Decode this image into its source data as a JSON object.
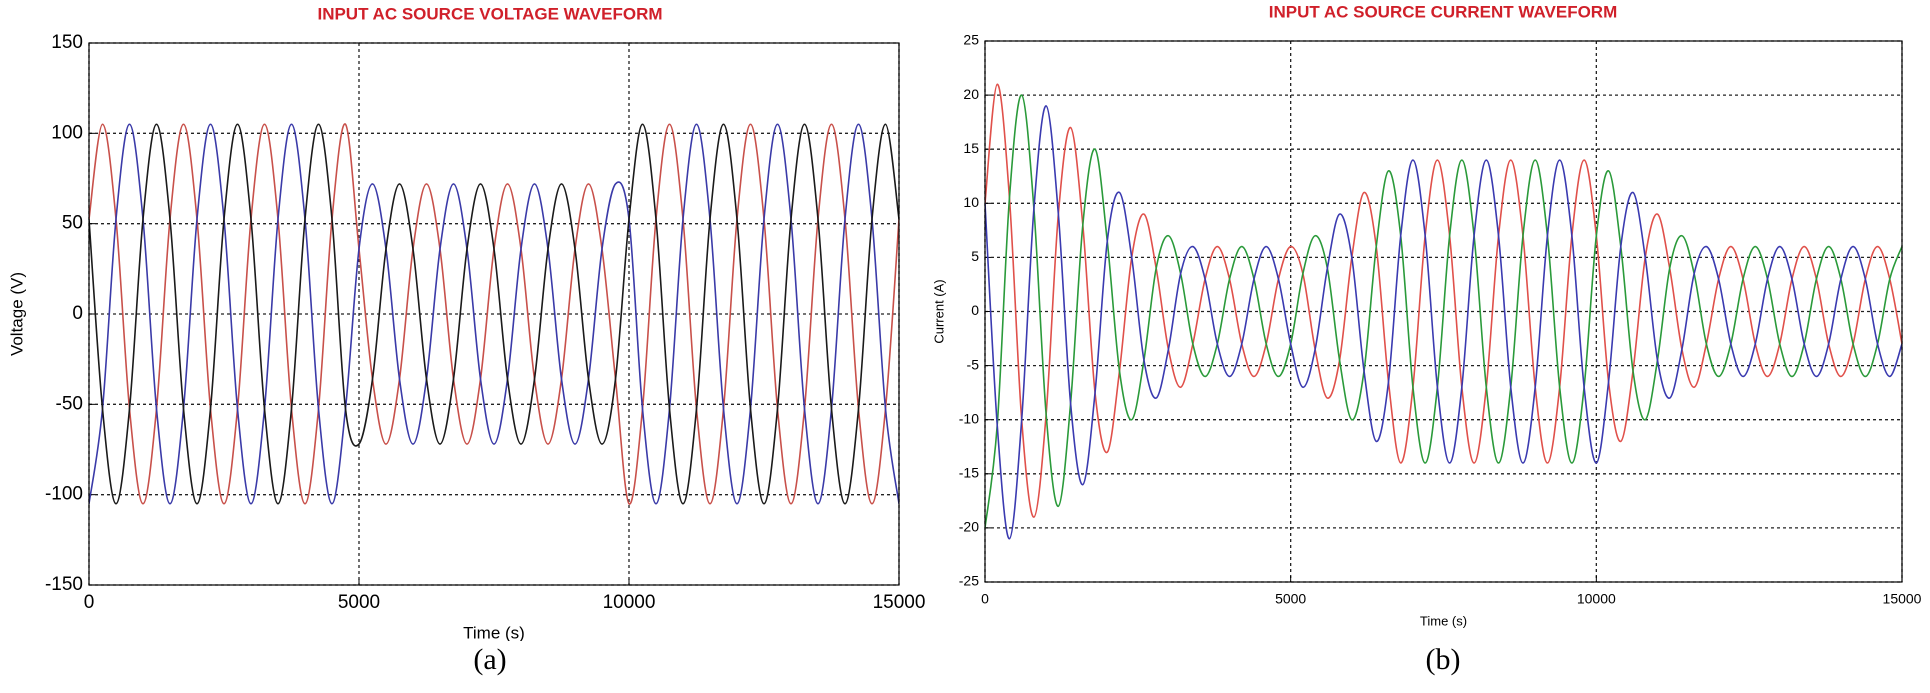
{
  "chart_data": [
    {
      "type": "line",
      "title": "INPUT AC SOURCE VOLTAGE WAVEFORM",
      "xlabel": "Time (s)",
      "ylabel": "Voltage (V)",
      "caption": "(a)",
      "x": [
        0,
        250,
        500,
        750,
        1000,
        1250,
        1500,
        1750,
        2000,
        2250,
        2500,
        2750,
        3000,
        3250,
        3500,
        3750,
        4000,
        4250,
        4500,
        4750,
        5000,
        5250,
        5500,
        5750,
        6000,
        6250,
        6500,
        6750,
        7000,
        7250,
        7500,
        7750,
        8000,
        8250,
        8500,
        8750,
        9000,
        9250,
        9500,
        9750,
        10000,
        10250,
        10500,
        10750,
        11000,
        11250,
        11500,
        11750,
        12000,
        12250,
        12500,
        12750,
        13000,
        13250,
        13500,
        13750,
        14000,
        14250,
        14500,
        14750,
        15000
      ],
      "series": [
        {
          "color": "#c8504a",
          "values": [
            52.5,
            105,
            52.5,
            -52.5,
            -105,
            -52.5,
            52.5,
            105,
            52.5,
            -52.5,
            -105,
            -52.5,
            52.5,
            105,
            52.5,
            -52.5,
            -105,
            -52.5,
            52.5,
            105,
            36,
            -36,
            -72,
            -36,
            36,
            72,
            36,
            -36,
            -72,
            -36,
            36,
            72,
            36,
            -36,
            -72,
            -36,
            36,
            72,
            36,
            -36,
            -105,
            -52.5,
            52.5,
            105,
            52.5,
            -52.5,
            -105,
            -52.5,
            52.5,
            105,
            52.5,
            -52.5,
            -105,
            -52.5,
            52.5,
            105,
            52.5,
            -52.5,
            -105,
            -52.5,
            52.5
          ]
        },
        {
          "color": "#3a3aa8",
          "values": [
            -105,
            -52.5,
            52.5,
            105,
            52.5,
            -52.5,
            -105,
            -52.5,
            52.5,
            105,
            52.5,
            -52.5,
            -105,
            -52.5,
            52.5,
            105,
            52.5,
            -52.5,
            -105,
            -52.5,
            36,
            72,
            36,
            -36,
            -72,
            -36,
            36,
            72,
            36,
            -36,
            -72,
            -36,
            36,
            72,
            36,
            -36,
            -72,
            -36,
            36,
            72,
            52.5,
            -52.5,
            -105,
            -52.5,
            52.5,
            105,
            52.5,
            -52.5,
            -105,
            -52.5,
            52.5,
            105,
            52.5,
            -52.5,
            -105,
            -52.5,
            52.5,
            105,
            52.5,
            -52.5,
            -105
          ]
        },
        {
          "color": "#1a1a1a",
          "values": [
            52.5,
            -52.5,
            -105,
            -52.5,
            52.5,
            105,
            52.5,
            -52.5,
            -105,
            -52.5,
            52.5,
            105,
            52.5,
            -52.5,
            -105,
            -52.5,
            52.5,
            105,
            52.5,
            -52.5,
            -72,
            -36,
            36,
            72,
            36,
            -36,
            -72,
            -36,
            36,
            72,
            36,
            -36,
            -72,
            -36,
            36,
            72,
            36,
            -36,
            -72,
            -36,
            52.5,
            105,
            52.5,
            -52.5,
            -105,
            -52.5,
            52.5,
            105,
            52.5,
            -52.5,
            -105,
            -52.5,
            52.5,
            105,
            52.5,
            -52.5,
            -105,
            -52.5,
            52.5,
            105,
            52.5
          ]
        }
      ],
      "xlim": [
        0,
        15000
      ],
      "ylim": [
        -150,
        150
      ],
      "xticks": [
        0,
        5000,
        10000,
        15000
      ],
      "yticks": [
        -150,
        -100,
        -50,
        0,
        50,
        100,
        150
      ],
      "grid": true
    },
    {
      "type": "line",
      "title": "INPUT AC SOURCE CURRENT WAVEFORM",
      "xlabel": "Time (s)",
      "ylabel": "Current (A)",
      "caption": "(b)",
      "x": [
        0,
        200,
        400,
        600,
        800,
        1000,
        1200,
        1400,
        1600,
        1800,
        2000,
        2200,
        2400,
        2600,
        2800,
        3000,
        3200,
        3400,
        3600,
        3800,
        4000,
        4200,
        4400,
        4600,
        4800,
        5000,
        5200,
        5400,
        5600,
        5800,
        6000,
        6200,
        6400,
        6600,
        6800,
        7000,
        7200,
        7400,
        7600,
        7800,
        8000,
        8200,
        8400,
        8600,
        8800,
        9000,
        9200,
        9400,
        9600,
        9800,
        10000,
        10200,
        10400,
        10600,
        10800,
        11000,
        11200,
        11400,
        11600,
        11800,
        12000,
        12200,
        12400,
        12600,
        12800,
        13000,
        13200,
        13400,
        13600,
        13800,
        14000,
        14200,
        14400,
        14600,
        14800,
        15000
      ],
      "series": [
        {
          "color": "#e0504a",
          "values": [
            10,
            21,
            10.5,
            -10,
            -19,
            -9.5,
            9,
            17,
            8,
            -7.5,
            -13,
            -5.5,
            5,
            9,
            4,
            -3.5,
            -7,
            -3,
            3,
            6,
            3,
            -3,
            -6,
            -3,
            3,
            6,
            3.5,
            -3.5,
            -8,
            -4.5,
            5,
            11,
            6,
            -6.5,
            -14,
            -7,
            7,
            14,
            7,
            -7,
            -14,
            -7,
            7,
            14,
            7,
            -7,
            -14,
            -7,
            7,
            14,
            7,
            -6.5,
            -12,
            -5.5,
            5,
            9,
            4,
            -3.5,
            -7,
            -3,
            3,
            6,
            3,
            -3,
            -6,
            -3,
            3,
            6,
            3,
            -3,
            -6,
            -3,
            3,
            6,
            3,
            -3
          ]
        },
        {
          "color": "#2a9a3a",
          "values": [
            -20,
            -10.5,
            10.5,
            20,
            9.5,
            -9.5,
            -18,
            -8.5,
            8,
            15,
            6.5,
            -5.5,
            -10,
            -4.5,
            4,
            7,
            3.5,
            -3,
            -6,
            -3,
            3,
            6,
            3,
            -3,
            -6,
            -3,
            3.5,
            7,
            4,
            -4.5,
            -10,
            -5.5,
            6,
            13,
            7,
            -7,
            -14,
            -7,
            7,
            14,
            7,
            -7,
            -14,
            -7,
            7,
            14,
            7,
            -7,
            -14,
            -7,
            7,
            13,
            6,
            -5.5,
            -10,
            -4.5,
            4,
            7,
            3.5,
            -3,
            -6,
            -3,
            3,
            6,
            3,
            -3,
            -6,
            -3,
            3,
            6,
            3,
            -3,
            -6,
            -3,
            3,
            6
          ]
        },
        {
          "color": "#3a3ab0",
          "values": [
            10,
            -10.5,
            -21,
            -10,
            9.5,
            19,
            9,
            -8.5,
            -16,
            -7.5,
            6.5,
            11,
            5,
            -4.5,
            -8,
            -3.5,
            3.5,
            6,
            3,
            -3,
            -6,
            -3,
            3,
            6,
            3,
            -3,
            -7,
            -3.5,
            4,
            9,
            5,
            -5.5,
            -12,
            -6.5,
            7,
            14,
            7,
            -7,
            -14,
            -7,
            7,
            14,
            7,
            -7,
            -14,
            -7,
            7,
            14,
            7,
            -7,
            -14,
            -6.5,
            6,
            11,
            5,
            -4.5,
            -8,
            -3.5,
            3.5,
            6,
            3,
            -3,
            -6,
            -3,
            3,
            6,
            3,
            -3,
            -6,
            -3,
            3,
            6,
            3,
            -3,
            -6,
            -3
          ]
        }
      ],
      "xlim": [
        0,
        15000
      ],
      "ylim": [
        -25,
        25
      ],
      "xticks": [
        0,
        5000,
        10000,
        15000
      ],
      "yticks": [
        -25,
        -20,
        -15,
        -10,
        -5,
        0,
        5,
        10,
        15,
        20,
        25
      ],
      "grid": true
    }
  ]
}
